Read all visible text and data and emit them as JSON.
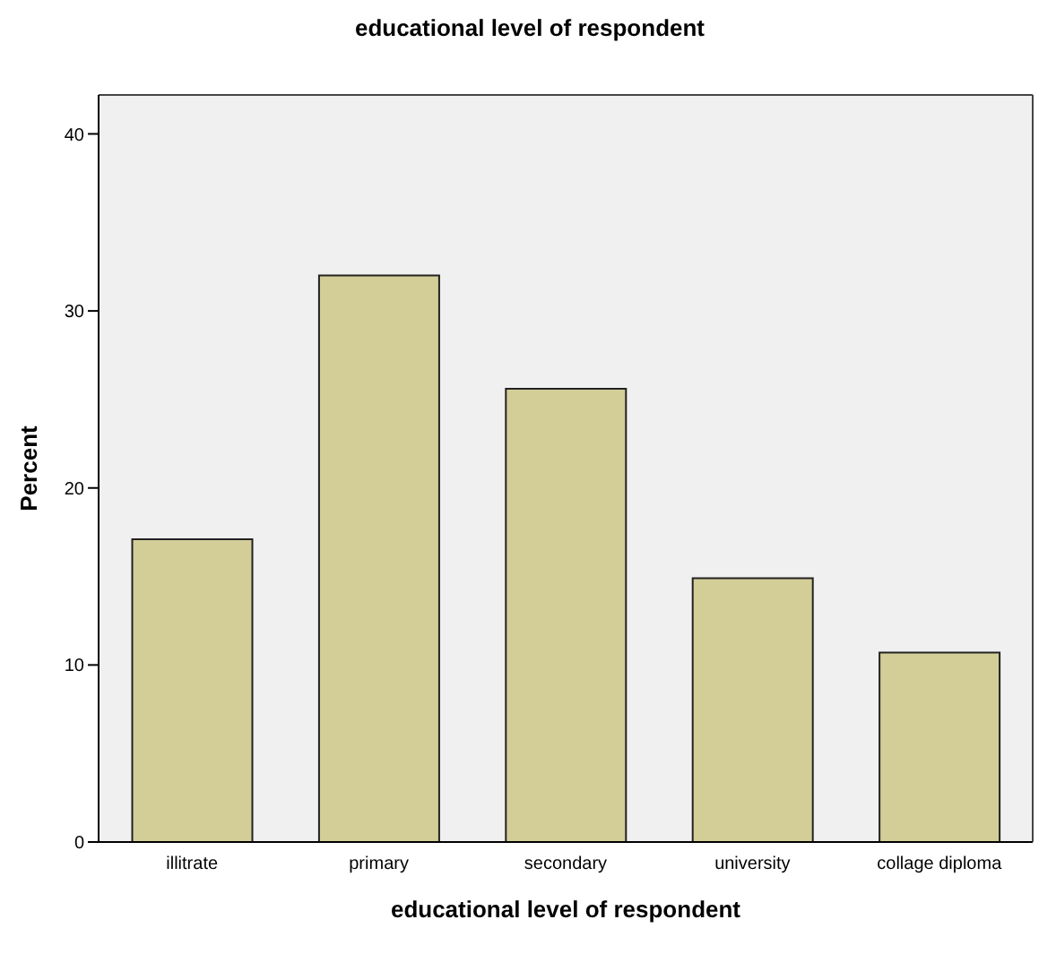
{
  "chart_data": {
    "type": "bar",
    "title": "educational level of respondent",
    "xlabel": "educational level of respondent",
    "ylabel": "Percent",
    "categories": [
      "illitrate",
      "primary",
      "secondary",
      "university",
      "collage diploma"
    ],
    "values": [
      17.1,
      32.0,
      25.6,
      14.9,
      10.7
    ],
    "color": "#d3ce97",
    "ylim": [
      0,
      42.2
    ],
    "yticks": [
      0,
      10,
      20,
      30,
      40
    ],
    "grid": false
  }
}
